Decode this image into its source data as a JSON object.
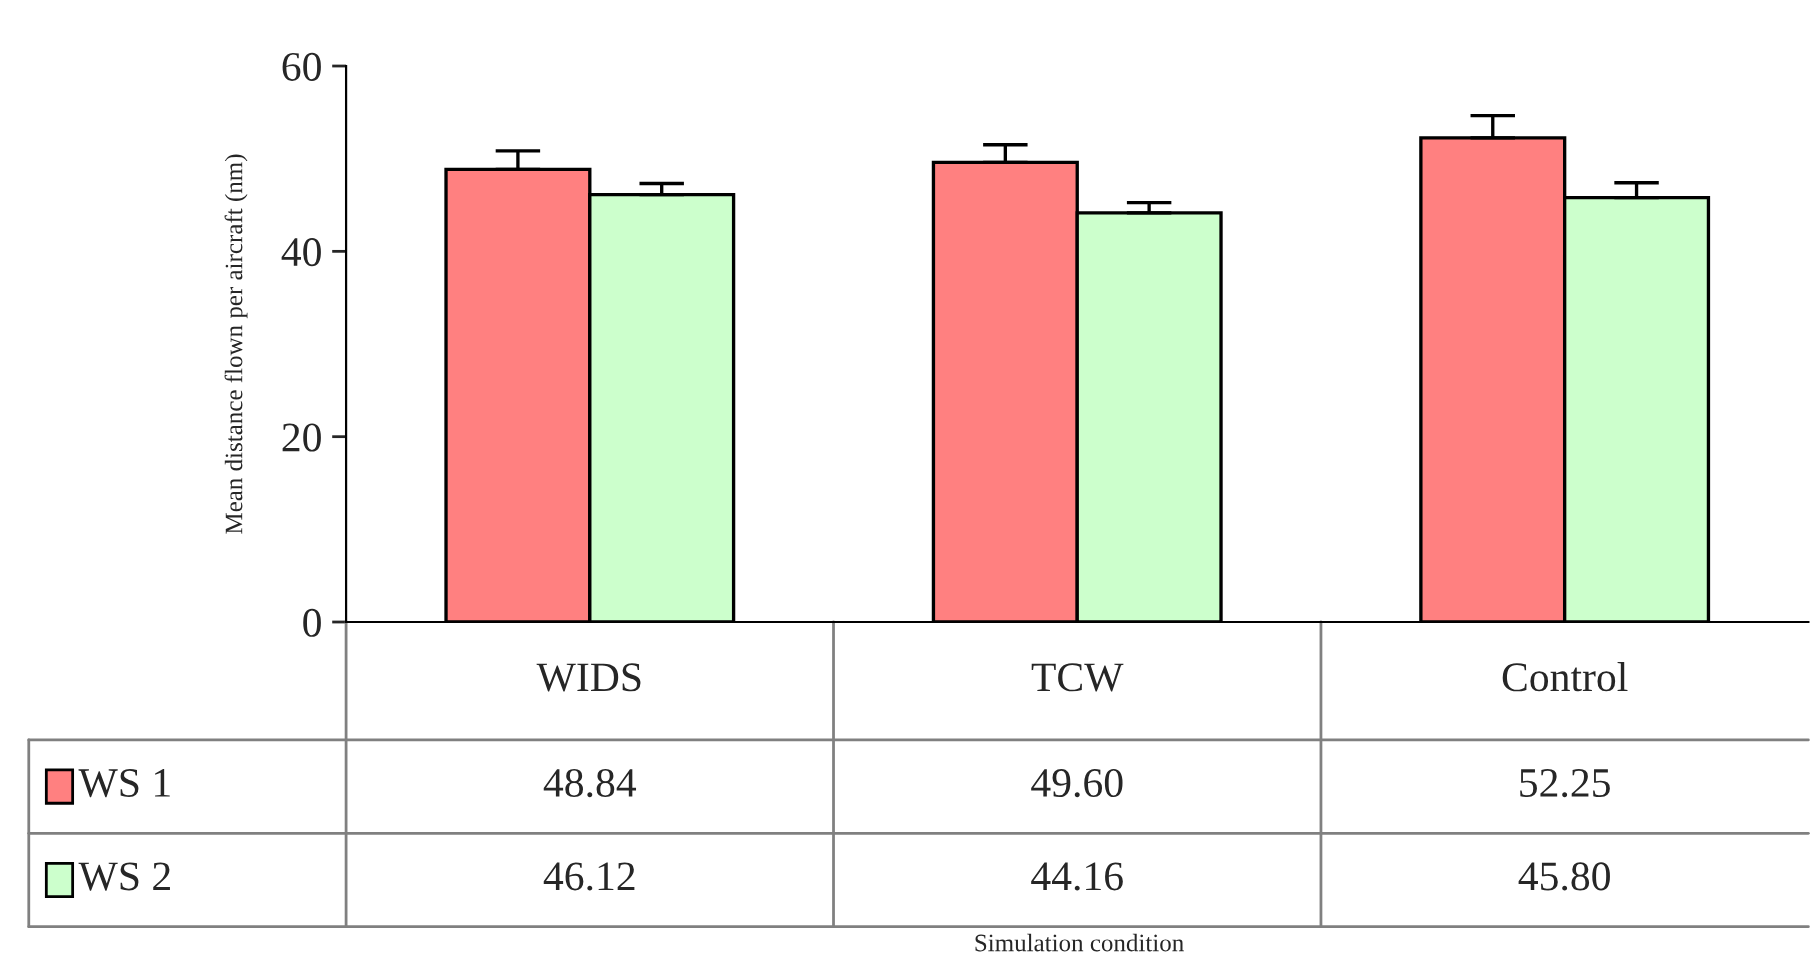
{
  "chart_data": {
    "type": "bar",
    "ylabel": "Mean distance flown per aircraft (nm)",
    "annotations": [
      "Simulation condition"
    ],
    "categories": [
      "WIDS",
      "TCW",
      "Control"
    ],
    "series": [
      {
        "name": "WS 1",
        "color": "#ff8080",
        "values": [
          48.84,
          49.6,
          52.25
        ],
        "value_labels": [
          "48.84",
          "49.60",
          "52.25"
        ],
        "errors": [
          [
            48.84,
            50.84
          ],
          [
            49.6,
            51.5
          ],
          [
            52.25,
            54.65
          ]
        ]
      },
      {
        "name": "WS 2",
        "color": "#ccffcc",
        "values": [
          46.12,
          44.16,
          45.8
        ],
        "value_labels": [
          "46.12",
          "44.16",
          "45.80"
        ],
        "errors": [
          [
            46.12,
            47.32
          ],
          [
            44.16,
            45.26
          ],
          [
            45.8,
            47.4
          ]
        ]
      }
    ],
    "ylim": [
      0,
      60
    ],
    "yticks": [
      0,
      20,
      40,
      60
    ],
    "grid": false,
    "legend": "bottom"
  }
}
